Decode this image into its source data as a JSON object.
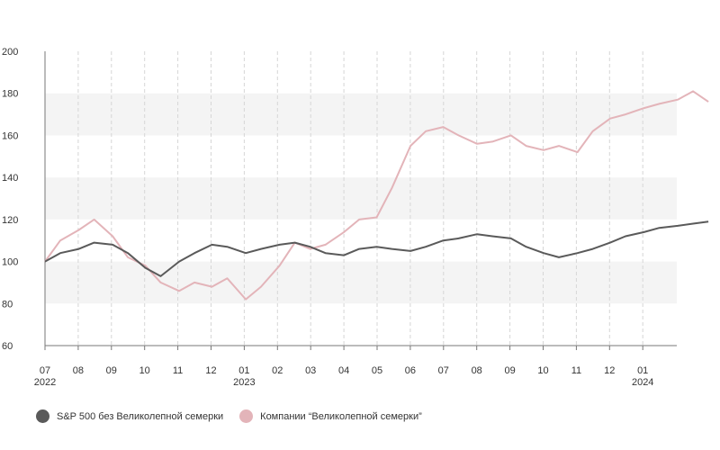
{
  "chart_data": {
    "type": "line",
    "title": "",
    "xlabel": "",
    "ylabel": "",
    "ylim": [
      60,
      200
    ],
    "yticks": [
      60,
      80,
      100,
      120,
      140,
      160,
      180,
      200
    ],
    "grid": "alternating horizontal bands, vertical dashed lines at month ticks",
    "legend_position": "bottom-left",
    "x_ticks": [
      "07",
      "08",
      "09",
      "10",
      "11",
      "12",
      "01",
      "02",
      "03",
      "04",
      "05",
      "06",
      "07",
      "08",
      "09",
      "10",
      "11",
      "12",
      "01"
    ],
    "x_year_labels": [
      {
        "tick": 0,
        "label": "2022"
      },
      {
        "tick": 6,
        "label": "2023"
      },
      {
        "tick": 18,
        "label": "2024"
      }
    ],
    "x_dates": [
      "2022-07-01",
      "2022-07-15",
      "2022-08-01",
      "2022-08-15",
      "2022-09-01",
      "2022-09-15",
      "2022-10-01",
      "2022-10-15",
      "2022-11-01",
      "2022-11-15",
      "2022-12-01",
      "2022-12-15",
      "2023-01-01",
      "2023-01-15",
      "2023-02-01",
      "2023-02-15",
      "2023-03-01",
      "2023-03-15",
      "2023-04-01",
      "2023-04-15",
      "2023-05-01",
      "2023-05-15",
      "2023-06-01",
      "2023-06-15",
      "2023-07-01",
      "2023-07-15",
      "2023-08-01",
      "2023-08-15",
      "2023-09-01",
      "2023-09-15",
      "2023-10-01",
      "2023-10-15",
      "2023-11-01",
      "2023-11-15",
      "2023-12-01",
      "2023-12-15",
      "2024-01-01",
      "2024-01-15",
      "2024-02-01",
      "2024-02-15",
      "2024-02-29"
    ],
    "series": [
      {
        "name": "S&P 500 без Великолепной семерки",
        "color": "#5a5a5a",
        "values": [
          100,
          104,
          106,
          109,
          108,
          104,
          97,
          93,
          100,
          104,
          108,
          107,
          104,
          106,
          108,
          109,
          107,
          104,
          103,
          106,
          107,
          106,
          105,
          107,
          110,
          111,
          113,
          112,
          111,
          107,
          104,
          102,
          104,
          106,
          109,
          112,
          114,
          116,
          117,
          118,
          119
        ]
      },
      {
        "name": "Компании “Великолепной семерки”",
        "color": "#e3b4b9",
        "values": [
          100,
          110,
          115,
          120,
          112,
          102,
          98,
          90,
          86,
          90,
          88,
          92,
          82,
          88,
          98,
          109,
          106,
          108,
          114,
          120,
          121,
          135,
          155,
          162,
          164,
          160,
          156,
          157,
          160,
          155,
          153,
          155,
          152,
          162,
          168,
          170,
          173,
          175,
          177,
          181,
          176
        ]
      }
    ]
  }
}
